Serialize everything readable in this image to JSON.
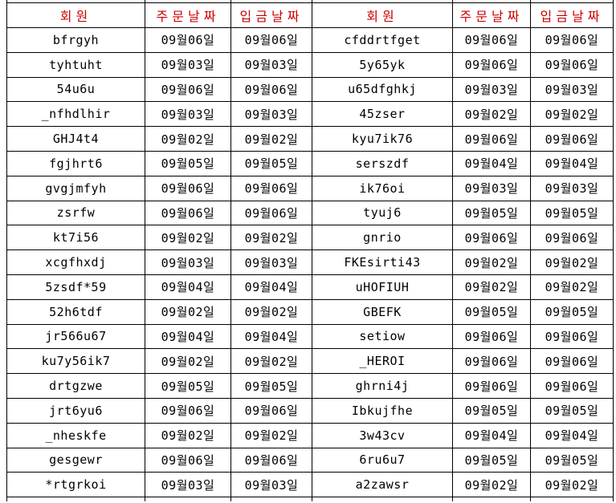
{
  "table": {
    "headers": [
      "회원",
      "주문날짜",
      "입금날짜",
      "회원",
      "주문날짜",
      "입금날짜"
    ],
    "rows": [
      [
        "bfrgyh",
        "09월06일",
        "09월06일",
        "cfddrtfget",
        "09월06일",
        "09월06일"
      ],
      [
        "tyhtuht",
        "09월03일",
        "09월03일",
        "5y65yk",
        "09월06일",
        "09월06일"
      ],
      [
        "54u6u",
        "09월06일",
        "09월06일",
        "u65dfghkj",
        "09월03일",
        "09월03일"
      ],
      [
        "_nfhdlhir",
        "09월03일",
        "09월03일",
        "45zser",
        "09월02일",
        "09월02일"
      ],
      [
        "GHJ4t4",
        "09월02일",
        "09월02일",
        "kyu7ik76",
        "09월06일",
        "09월06일"
      ],
      [
        "fgjhrt6",
        "09월05일",
        "09월05일",
        "serszdf",
        "09월04일",
        "09월04일"
      ],
      [
        "gvgjmfyh",
        "09월06일",
        "09월06일",
        "ik76oi",
        "09월03일",
        "09월03일"
      ],
      [
        "zsrfw",
        "09월06일",
        "09월06일",
        "tyuj6",
        "09월05일",
        "09월05일"
      ],
      [
        "kt7i56",
        "09월02일",
        "09월02일",
        "gnrio",
        "09월06일",
        "09월06일"
      ],
      [
        "xcgfhxdj",
        "09월03일",
        "09월03일",
        "FKEsirti43",
        "09월02일",
        "09월02일"
      ],
      [
        "5zsdf*59",
        "09월04일",
        "09월04일",
        "uHOFIUH",
        "09월02일",
        "09월02일"
      ],
      [
        "52h6tdf",
        "09월02일",
        "09월02일",
        "GBEFK",
        "09월05일",
        "09월05일"
      ],
      [
        "jr566u67",
        "09월04일",
        "09월04일",
        "setiow",
        "09월06일",
        "09월06일"
      ],
      [
        "ku7y56ik7",
        "09월02일",
        "09월02일",
        "_HEROI",
        "09월06일",
        "09월06일"
      ],
      [
        "drtgzwe",
        "09월05일",
        "09월05일",
        "ghrni4j",
        "09월06일",
        "09월06일"
      ],
      [
        "jrt6yu6",
        "09월06일",
        "09월06일",
        "Ibkujfhe",
        "09월05일",
        "09월05일"
      ],
      [
        "_nheskfe",
        "09월02일",
        "09월02일",
        "3w43cv",
        "09월04일",
        "09월04일"
      ],
      [
        "gesgewr",
        "09월06일",
        "09월06일",
        "6ru6u7",
        "09월05일",
        "09월05일"
      ],
      [
        "*rtgrkoi",
        "09월03일",
        "09월03일",
        "a2zawsr",
        "09월02일",
        "09월02일"
      ]
    ],
    "column_roles": [
      "member",
      "order-date",
      "deposit-date",
      "member",
      "order-date",
      "deposit-date"
    ]
  },
  "colors": {
    "header_text": "#cc0000",
    "body_text": "#000000",
    "border": "#000000",
    "background": "#ffffff"
  }
}
